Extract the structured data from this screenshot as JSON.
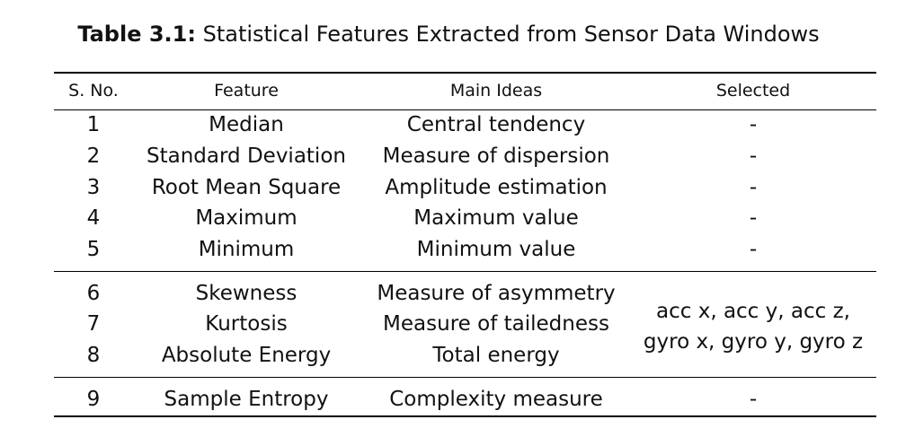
{
  "caption": {
    "label": "Table 3.1:",
    "title": "Statistical Features Extracted from Sensor Data Windows"
  },
  "table": {
    "headers": [
      "S. No.",
      "Feature",
      "Main Ideas",
      "Selected"
    ],
    "rows": [
      {
        "sno": "1",
        "feature": "Median",
        "idea": "Central tendency",
        "selected": "-"
      },
      {
        "sno": "2",
        "feature": "Standard Deviation",
        "idea": "Measure of dispersion",
        "selected": "-"
      },
      {
        "sno": "3",
        "feature": "Root Mean Square",
        "idea": "Amplitude estimation",
        "selected": "-"
      },
      {
        "sno": "4",
        "feature": "Maximum",
        "idea": "Maximum value",
        "selected": "-"
      },
      {
        "sno": "5",
        "feature": "Minimum",
        "idea": "Minimum value",
        "selected": "-"
      },
      {
        "sno": "6",
        "feature": "Skewness",
        "idea": "Measure of asymmetry"
      },
      {
        "sno": "7",
        "feature": "Kurtosis",
        "idea": "Measure of tailedness"
      },
      {
        "sno": "8",
        "feature": "Absolute Energy",
        "idea": "Total energy"
      },
      {
        "sno": "9",
        "feature": "Sample Entropy",
        "idea": "Complexity measure",
        "selected": "-"
      }
    ],
    "merged_selected": {
      "line1": "acc x, acc y, acc z,",
      "line2": "gyro x, gyro y, gyro z"
    }
  }
}
